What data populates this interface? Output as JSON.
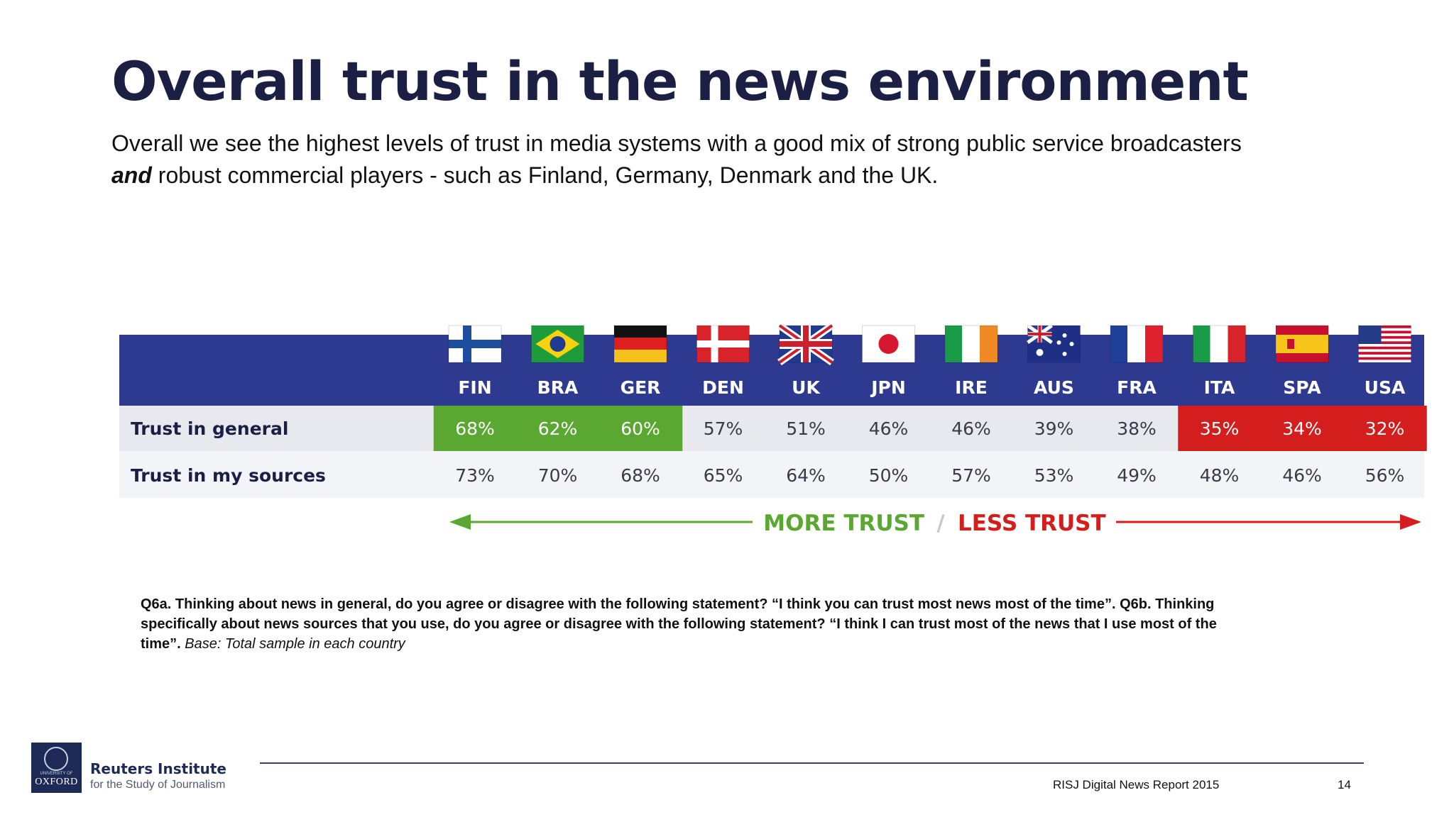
{
  "header": {
    "title": "Overall trust in the news environment",
    "subtitle_1": "Overall we see the highest levels of trust in media systems with a good mix of strong public service broadcasters",
    "subtitle_emph": "and",
    "subtitle_2": "robust commercial players -  such as Finland, Germany, Denmark and the UK."
  },
  "chart_data": {
    "type": "table",
    "categories": [
      "FIN",
      "BRA",
      "GER",
      "DEN",
      "UK",
      "JPN",
      "IRE",
      "AUS",
      "FRA",
      "ITA",
      "SPA",
      "USA"
    ],
    "series": [
      {
        "name": "Trust in general",
        "values": [
          68,
          62,
          60,
          57,
          51,
          46,
          46,
          39,
          38,
          35,
          34,
          32
        ],
        "labels": [
          "68%",
          "62%",
          "60%",
          "57%",
          "51%",
          "46%",
          "46%",
          "39%",
          "38%",
          "35%",
          "34%",
          "32%"
        ]
      },
      {
        "name": "Trust in my sources",
        "values": [
          73,
          70,
          68,
          65,
          64,
          50,
          57,
          53,
          49,
          48,
          46,
          56
        ],
        "labels": [
          "73%",
          "70%",
          "68%",
          "65%",
          "64%",
          "50%",
          "57%",
          "53%",
          "49%",
          "48%",
          "46%",
          "56%"
        ]
      }
    ],
    "highlight": {
      "high_count": 3,
      "low_count": 3,
      "high_color": "#5aa832",
      "low_color": "#d41e1e"
    },
    "scale": {
      "more_label": "MORE TRUST",
      "separator": "/",
      "less_label": "LESS TRUST",
      "more_color": "#5aa832",
      "less_color": "#d41e1e"
    },
    "header_color": "#2e3990"
  },
  "footnote": {
    "text": "Q6a. Thinking about news in general, do you agree or disagree with the following statement? “I think you can trust most news most of the time”. Q6b. Thinking specifically about news sources that you use, do you agree or disagree with the following statement?  “I think I can trust most of the news that I use most of the time”.",
    "base": "Base: Total sample in each country"
  },
  "footer": {
    "logo_top": "UNIVERSITY OF",
    "logo_bottom": "OXFORD",
    "org_name": "Reuters Institute",
    "org_sub": "for the Study of Journalism",
    "report": "RISJ Digital News Report 2015",
    "page": "14"
  }
}
